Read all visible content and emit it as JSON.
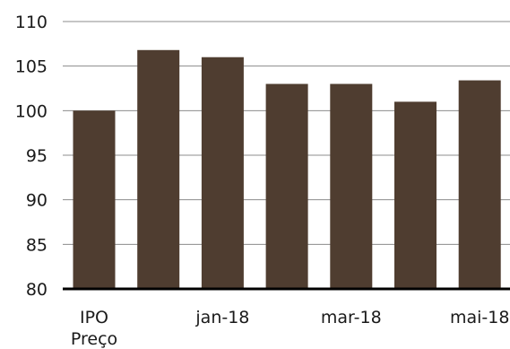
{
  "chart_data": {
    "type": "bar",
    "title": "",
    "xlabel": "",
    "ylabel": "",
    "ylim": [
      80,
      110
    ],
    "yticks": [
      80,
      85,
      90,
      95,
      100,
      105,
      110
    ],
    "grid": true,
    "legend": "none",
    "bar_color": "#4f3d30",
    "categories": [
      "IPO Preço",
      "",
      "jan-18",
      "",
      "mar-18",
      "",
      "mai-18"
    ],
    "category_labels": [
      [
        "IPO",
        "Preço"
      ],
      [],
      [
        "jan-18"
      ],
      [],
      [
        "mar-18"
      ],
      [],
      [
        "mai-18"
      ]
    ],
    "values": [
      100,
      106.8,
      106,
      103,
      103,
      101,
      103.4
    ]
  }
}
